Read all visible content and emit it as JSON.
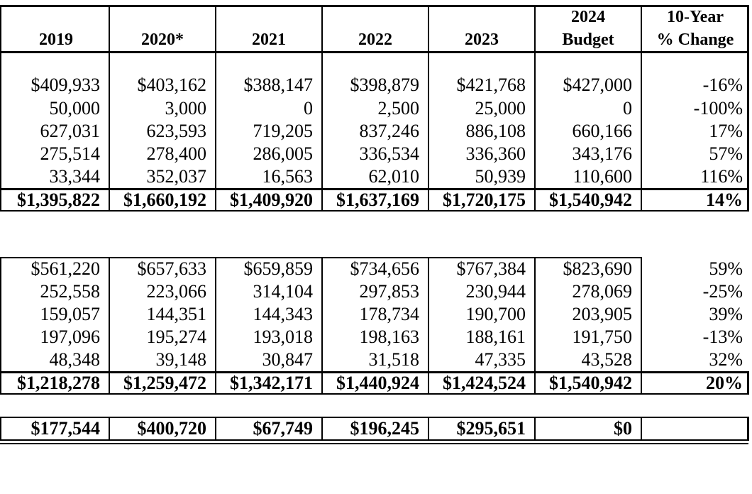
{
  "header": {
    "col_2019": "2019",
    "col_2020": "2020*",
    "col_2021": "2021",
    "col_2022": "2022",
    "col_2023": "2023",
    "col_2024_line1": "2024",
    "col_2024_line2": "Budget",
    "col_change_line1": "10-Year",
    "col_change_line2": "% Change"
  },
  "section1": {
    "rows": [
      [
        "$409,933",
        "$403,162",
        "$388,147",
        "$398,879",
        "$421,768",
        "$427,000",
        "-16%"
      ],
      [
        "50,000",
        "3,000",
        "0",
        "2,500",
        "25,000",
        "0",
        "-100%"
      ],
      [
        "627,031",
        "623,593",
        "719,205",
        "837,246",
        "886,108",
        "660,166",
        "17%"
      ],
      [
        "275,514",
        "278,400",
        "286,005",
        "336,534",
        "336,360",
        "343,176",
        "57%"
      ],
      [
        "33,344",
        "352,037",
        "16,563",
        "62,010",
        "50,939",
        "110,600",
        "116%"
      ]
    ],
    "total": [
      "$1,395,822",
      "$1,660,192",
      "$1,409,920",
      "$1,637,169",
      "$1,720,175",
      "$1,540,942",
      "14%"
    ]
  },
  "section2": {
    "rows": [
      [
        "$561,220",
        "$657,633",
        "$659,859",
        "$734,656",
        "$767,384",
        "$823,690",
        "59%"
      ],
      [
        "252,558",
        "223,066",
        "314,104",
        "297,853",
        "230,944",
        "278,069",
        "-25%"
      ],
      [
        "159,057",
        "144,351",
        "144,343",
        "178,734",
        "190,700",
        "203,905",
        "39%"
      ],
      [
        "197,096",
        "195,274",
        "193,018",
        "198,163",
        "188,161",
        "191,750",
        "-13%"
      ],
      [
        "48,348",
        "39,148",
        "30,847",
        "31,518",
        "47,335",
        "43,528",
        "32%"
      ]
    ],
    "total": [
      "$1,218,278",
      "$1,259,472",
      "$1,342,171",
      "$1,440,924",
      "$1,424,524",
      "$1,540,942",
      "20%"
    ]
  },
  "net": [
    "$177,544",
    "$400,720",
    "$67,749",
    "$196,245",
    "$295,651",
    "$0",
    ""
  ]
}
